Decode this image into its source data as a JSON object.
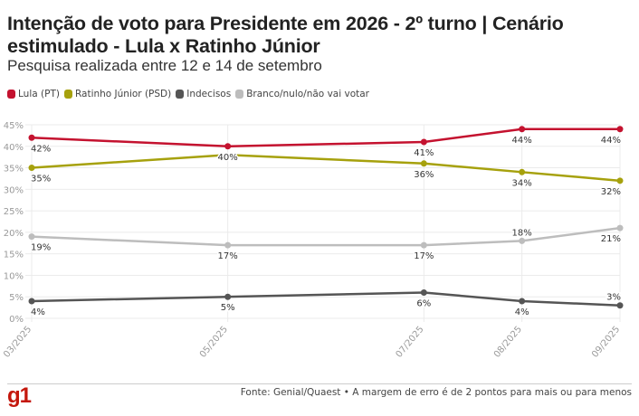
{
  "header": {
    "title": "Intenção de voto para Presidente em 2026 - 2º turno | Cenário estimulado - Lula x Ratinho Júnior",
    "subtitle": "Pesquisa realizada entre 12 e 14 de setembro"
  },
  "legend": [
    {
      "label": "Lula (PT)",
      "color": "#c4122f"
    },
    {
      "label": "Ratinho Júnior (PSD)",
      "color": "#a6a10d"
    },
    {
      "label": "Indecisos",
      "color": "#555555"
    },
    {
      "label": "Branco/nulo/não vai votar",
      "color": "#bdbdbd"
    }
  ],
  "chart_data": {
    "type": "line",
    "title": "Intenção de voto para Presidente em 2026 - 2º turno | Cenário estimulado - Lula x Ratinho Júnior",
    "subtitle": "Pesquisa realizada entre 12 e 14 de setembro",
    "xlabel": "",
    "ylabel": "",
    "x": [
      "03/2025",
      "05/2025",
      "07/2025",
      "08/2025",
      "09/2025"
    ],
    "x_month_index": [
      3,
      5,
      7,
      8,
      9
    ],
    "ylim": [
      0,
      45
    ],
    "yticks": [
      0,
      5,
      10,
      15,
      20,
      25,
      30,
      35,
      40,
      45
    ],
    "ytick_labels": [
      "0%",
      "5%",
      "10%",
      "15%",
      "20%",
      "25%",
      "30%",
      "35%",
      "40%",
      "45%"
    ],
    "grid": true,
    "legend_position": "top-left",
    "series": [
      {
        "name": "Lula (PT)",
        "color": "#c4122f",
        "values": [
          42,
          40,
          41,
          44,
          44
        ],
        "labels": [
          "42%",
          "40%",
          "41%",
          "44%",
          "44%"
        ],
        "label_pos": [
          "below",
          "below",
          "below",
          "below",
          "below"
        ]
      },
      {
        "name": "Ratinho Júnior (PSD)",
        "color": "#a6a10d",
        "values": [
          35,
          38,
          36,
          34,
          32
        ],
        "labels": [
          "35%",
          "",
          "36%",
          "34%",
          "32%"
        ],
        "label_pos": [
          "below",
          "none",
          "below",
          "below",
          "below"
        ]
      },
      {
        "name": "Indecisos",
        "color": "#555555",
        "values": [
          4,
          5,
          6,
          4,
          3
        ],
        "labels": [
          "4%",
          "5%",
          "6%",
          "4%",
          "3%"
        ],
        "label_pos": [
          "below",
          "below",
          "below",
          "below",
          "above"
        ]
      },
      {
        "name": "Branco/nulo/não vai votar",
        "color": "#bdbdbd",
        "values": [
          19,
          17,
          17,
          18,
          21
        ],
        "labels": [
          "19%",
          "17%",
          "17%",
          "18%",
          "21%"
        ],
        "label_pos": [
          "below",
          "below",
          "below",
          "above",
          "below"
        ]
      }
    ]
  },
  "footer": {
    "logo": "g1",
    "source": "Fonte: Genial/Quaest • A margem de erro é de 2 pontos para mais ou para menos"
  }
}
